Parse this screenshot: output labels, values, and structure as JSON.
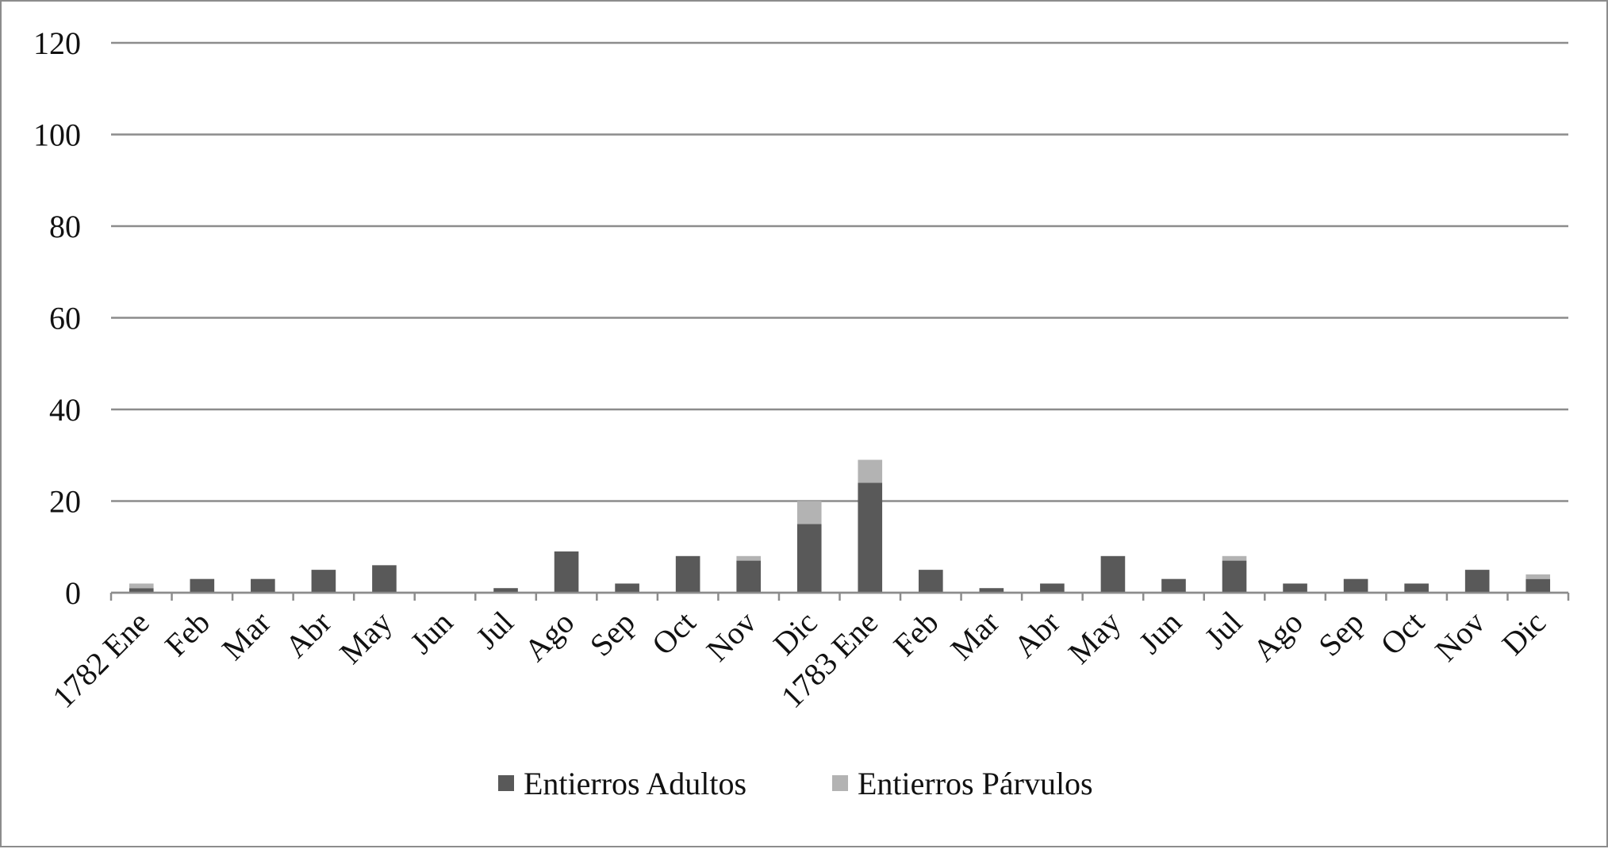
{
  "chart_data": {
    "type": "bar",
    "stacked": true,
    "title": "",
    "xlabel": "",
    "ylabel": "",
    "ylim": [
      0,
      120
    ],
    "yticks": [
      0,
      20,
      40,
      60,
      80,
      100,
      120
    ],
    "grid": true,
    "legend_position": "bottom-center",
    "categories": [
      "1782 Ene",
      "Feb",
      "Mar",
      "Abr",
      "May",
      "Jun",
      "Jul",
      "Ago",
      "Sep",
      "Oct",
      "Nov",
      "Dic",
      "1783 Ene",
      "Feb",
      "Mar",
      "Abr",
      "May",
      "Jun",
      "Jul",
      "Ago",
      "Sep",
      "Oct",
      "Nov",
      "Dic"
    ],
    "series": [
      {
        "name": "Entierros Adultos",
        "color": "#595959",
        "values": [
          1,
          3,
          3,
          5,
          6,
          0,
          1,
          9,
          2,
          8,
          7,
          15,
          24,
          5,
          1,
          2,
          8,
          3,
          7,
          2,
          3,
          2,
          5,
          3
        ]
      },
      {
        "name": "Entierros Párvulos",
        "color": "#b3b3b3",
        "values": [
          1,
          0,
          0,
          0,
          0,
          0,
          0,
          0,
          0,
          0,
          1,
          5,
          5,
          0,
          0,
          0,
          0,
          0,
          1,
          0,
          0,
          0,
          0,
          1
        ]
      }
    ]
  }
}
